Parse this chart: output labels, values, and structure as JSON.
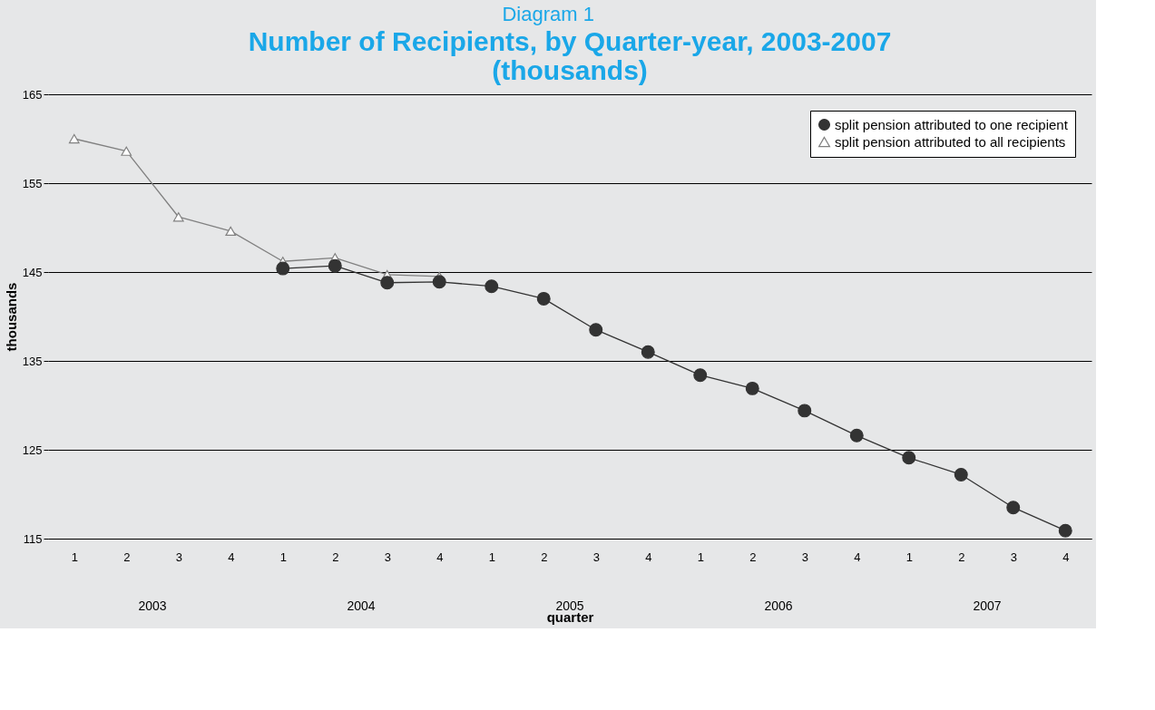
{
  "chart_data": {
    "type": "line",
    "subtitle": "Diagram 1",
    "title": "Number of Recipients, by Quarter-year, 2003-2007 (thousands)",
    "xlabel": "quarter",
    "ylabel": "thousands",
    "categories": [
      "1",
      "2",
      "3",
      "4",
      "1",
      "2",
      "3",
      "4",
      "1",
      "2",
      "3",
      "4",
      "1",
      "2",
      "3",
      "4",
      "1",
      "2",
      "3",
      "4"
    ],
    "annotations": [
      "2003",
      "2004",
      "2005",
      "2006",
      "2007"
    ],
    "series": [
      {
        "name": "split pension attributed to one recipient",
        "color": "#333333",
        "marker": "circle",
        "values": [
          null,
          null,
          null,
          null,
          145.4,
          145.7,
          143.8,
          143.9,
          143.4,
          142.0,
          138.5,
          136.0,
          133.4,
          131.9,
          129.4,
          126.6,
          124.1,
          122.2,
          118.5,
          115.9
        ]
      },
      {
        "name": "split pension attributed to all recipients",
        "color": "#808080",
        "marker": "triangle",
        "values": [
          160.0,
          158.6,
          151.2,
          149.6,
          146.2,
          146.6,
          144.7,
          144.5,
          null,
          null,
          null,
          null,
          null,
          null,
          null,
          null,
          null,
          null,
          null,
          null
        ]
      }
    ],
    "ylim": [
      115,
      165
    ],
    "yticks": [
      115,
      125,
      135,
      145,
      155,
      165
    ],
    "grid": "y",
    "legend": "top right"
  }
}
